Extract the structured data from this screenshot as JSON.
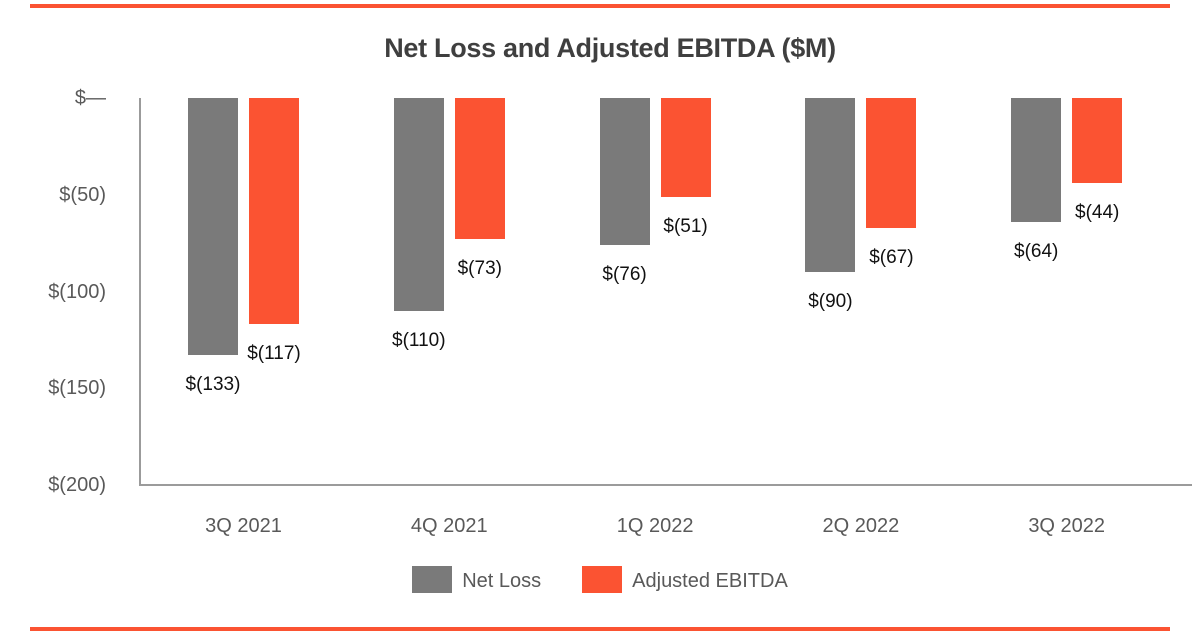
{
  "page": {
    "accent_color": "#FB5332",
    "background_color": "#FFFFFF"
  },
  "chart_data": {
    "type": "bar",
    "title": "Net Loss and Adjusted EBITDA ($M)",
    "title_color": "#3F3F3F",
    "categories": [
      "3Q 2021",
      "4Q 2021",
      "1Q 2022",
      "2Q 2022",
      "3Q 2022"
    ],
    "series": [
      {
        "name": "Net Loss",
        "color": "#7A7A7A",
        "values": [
          -133,
          -110,
          -76,
          -90,
          -64
        ],
        "data_labels": [
          "$(133)",
          "$(110)",
          "$(76)",
          "$(90)",
          "$(64)"
        ]
      },
      {
        "name": "Adjusted EBITDA",
        "color": "#FB5332",
        "values": [
          -117,
          -73,
          -51,
          -67,
          -44
        ],
        "data_labels": [
          "$(117)",
          "$(73)",
          "$(51)",
          "$(67)",
          "$(44)"
        ]
      }
    ],
    "y_axis": {
      "range": [
        -200,
        0
      ],
      "ticks": [
        {
          "label": "$—",
          "value": 0
        },
        {
          "label": "$(50)",
          "value": -50
        },
        {
          "label": "$(100)",
          "value": -100
        },
        {
          "label": "$(150)",
          "value": -150
        },
        {
          "label": "$(200)",
          "value": -200
        }
      ],
      "tick_color": "#595959"
    },
    "x_axis": {
      "label_color": "#595959",
      "axis_line_color": "#9B9B9B"
    },
    "data_label_color": "#111111",
    "grid": false,
    "legend": {
      "position": "bottom",
      "entries": [
        "Net Loss",
        "Adjusted EBITDA"
      ]
    }
  }
}
